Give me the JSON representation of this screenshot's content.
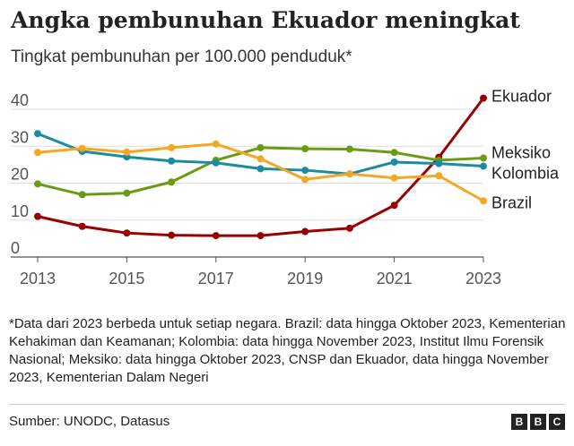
{
  "header": {
    "title": "Angka pembunuhan Ekuador meningkat",
    "subtitle": "Tingkat pembunuhan per 100.000 penduduk*"
  },
  "footnote": "*Data dari 2023 berbeda untuk setiap negara. Brazil: data hingga Oktober 2023, Kementerian Kehakiman dan Keamanan; Kolombia: data hingga November 2023, Institut Ilmu Forensik Nasional; Meksiko: data hingga Oktober 2023, CNSP dan Ekuador, data hingga November 2023, Kementerian Dalam Negeri",
  "source": "Sumber: UNODC, Datasus",
  "logo": [
    "B",
    "B",
    "C"
  ],
  "chart_data": {
    "type": "line",
    "title": "Angka pembunuhan Ekuador meningkat",
    "subtitle": "Tingkat pembunuhan per 100.000 penduduk*",
    "x": [
      2013,
      2014,
      2015,
      2016,
      2017,
      2018,
      2019,
      2020,
      2021,
      2022,
      2023
    ],
    "xticks": [
      2013,
      2015,
      2017,
      2019,
      2021,
      2023
    ],
    "yticks": [
      0,
      10,
      20,
      30,
      40
    ],
    "xlim": [
      2013,
      2023
    ],
    "ylim": [
      0,
      45
    ],
    "grid": true,
    "legend": "direct labels at line ends (right)",
    "series": [
      {
        "name": "Ekuador",
        "color": "#990000",
        "values": [
          11.0,
          8.3,
          6.5,
          5.9,
          5.8,
          5.8,
          6.9,
          7.8,
          14.0,
          27.0,
          43.0
        ]
      },
      {
        "name": "Meksiko",
        "color": "#6b9b13",
        "values": [
          19.8,
          16.9,
          17.3,
          20.3,
          26.2,
          29.6,
          29.3,
          29.2,
          28.3,
          26.2,
          26.8
        ]
      },
      {
        "name": "Kolombia",
        "color": "#1b8ba3",
        "values": [
          33.4,
          28.6,
          27.1,
          26.0,
          25.5,
          23.9,
          23.5,
          22.5,
          25.7,
          25.3,
          24.6
        ]
      },
      {
        "name": "Brazil",
        "color": "#f5a623",
        "values": [
          28.3,
          29.4,
          28.4,
          29.6,
          30.6,
          26.6,
          21.0,
          22.5,
          21.4,
          22.0,
          15.2
        ]
      }
    ]
  }
}
